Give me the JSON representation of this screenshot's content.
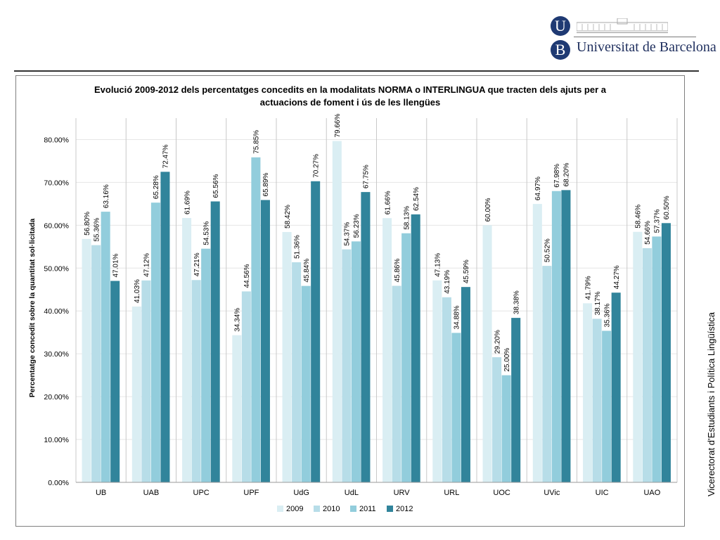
{
  "branding": {
    "logo_letter_top": "U",
    "logo_letter_bottom": "B",
    "university_name": "Universitat de Barcelona",
    "colors": {
      "logo_blue": "#1f3a73",
      "name_text": "#1f2f5e"
    }
  },
  "side_caption": "Vicerectorat d’Estudiants i Política Lingüística",
  "chart_data": {
    "type": "bar",
    "title_line1": "Evolució 2009-2012 dels percentatges concedits en la modalitats NORMA o INTERLINGUA que tracten dels ajuts per a",
    "title_line2": "actuacions de foment i ús de les llengües",
    "xlabel": "",
    "ylabel": "Percentatge concedit sobre la quantitat sol·licitada",
    "ylim": [
      0,
      85
    ],
    "yticks": [
      0,
      10,
      20,
      30,
      40,
      50,
      60,
      70,
      80
    ],
    "ytick_labels": [
      "0.00%",
      "10.00%",
      "20.00%",
      "30.00%",
      "40.00%",
      "50.00%",
      "60.00%",
      "70.00%",
      "80.00%"
    ],
    "grid": true,
    "legend_position": "bottom",
    "categories": [
      "UB",
      "UAB",
      "UPC",
      "UPF",
      "UdG",
      "UdL",
      "URV",
      "URL",
      "UOC",
      "UVic",
      "UIC",
      "UAO"
    ],
    "series": [
      {
        "name": "2009",
        "color": "#daeef3",
        "values": [
          56.8,
          41.03,
          61.69,
          34.34,
          58.42,
          79.66,
          61.66,
          47.13,
          60.0,
          64.97,
          41.79,
          58.46
        ],
        "labels": [
          "56.80%",
          "41.03%",
          "61.69%",
          "34.34%",
          "58.42%",
          "79.66%",
          "61.66%",
          "47.13%",
          "60.00%",
          "64.97%",
          "41.79%",
          "58.46%"
        ]
      },
      {
        "name": "2010",
        "color": "#b7dde8",
        "values": [
          55.36,
          47.12,
          47.21,
          44.56,
          51.36,
          54.37,
          45.86,
          43.19,
          29.2,
          50.52,
          38.17,
          54.66
        ],
        "labels": [
          "55.36%",
          "47.12%",
          "47.21%",
          "44.56%",
          "51.36%",
          "54.37%",
          "45.86%",
          "43.19%",
          "29.20%",
          "50.52%",
          "38.17%",
          "54.66%"
        ]
      },
      {
        "name": "2011",
        "color": "#92cddc",
        "values": [
          63.16,
          65.28,
          54.53,
          75.85,
          45.84,
          56.23,
          58.13,
          34.88,
          25.0,
          67.98,
          35.36,
          57.37
        ],
        "labels": [
          "63.16%",
          "65.28%",
          "54.53%",
          "75.85%",
          "45.84%",
          "56.23%",
          "58.13%",
          "34.88%",
          "25.00%",
          "67.98%",
          "35.36%",
          "57.37%"
        ]
      },
      {
        "name": "2012",
        "color": "#31849b",
        "values": [
          47.01,
          72.47,
          65.56,
          65.89,
          70.27,
          67.75,
          62.54,
          45.59,
          38.38,
          68.2,
          44.27,
          60.5
        ],
        "labels": [
          "47.01%",
          "72.47%",
          "65.56%",
          "65.89%",
          "70.27%",
          "67.75%",
          "62.54%",
          "45.59%",
          "38.38%",
          "68.20%",
          "44.27%",
          "60.50%"
        ]
      }
    ]
  }
}
